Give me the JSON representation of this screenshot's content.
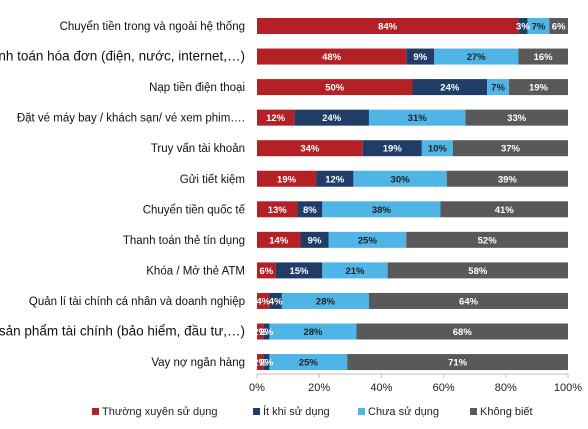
{
  "chart_data": {
    "type": "bar",
    "orientation": "horizontal",
    "stacked": true,
    "categories": [
      "Chuyển tiền trong và ngoài hệ thống",
      "Thanh toán hóa đơn (điện, nước, internet,…)",
      "Nạp tiền điện thoại",
      "Đặt vé máy bay / khách sạn/ vé xem phim….",
      "Truy vấn tài khoản",
      "Gửi tiết kiệm",
      "Chuyển tiền quốc tế",
      "Thanh toán thẻ tín dụng",
      "Khóa / Mở thẻ ATM",
      "Quản lí tài chính cá nhân và doanh nghiệp",
      "Các sản phẩm tài chính (bảo hiểm, đầu tư,…)",
      "Vay nợ ngân hàng"
    ],
    "series": [
      {
        "name": "Thường xuyên sử dụng",
        "color": "#b32025",
        "values": [
          84,
          48,
          50,
          12,
          34,
          19,
          13,
          14,
          6,
          4,
          2,
          2
        ]
      },
      {
        "name": "Ít khi sử dụng",
        "color": "#1f3d66",
        "values": [
          3,
          9,
          24,
          24,
          19,
          12,
          8,
          9,
          15,
          4,
          2,
          2
        ]
      },
      {
        "name": "Chưa sử dụng",
        "color": "#4fb4e6",
        "values": [
          7,
          27,
          7,
          31,
          10,
          30,
          38,
          25,
          21,
          28,
          28,
          25
        ]
      },
      {
        "name": "Không biết",
        "color": "#595959",
        "values": [
          6,
          16,
          19,
          33,
          37,
          39,
          41,
          52,
          58,
          64,
          68,
          71
        ]
      }
    ],
    "data_labels": [
      [
        "84%",
        "48%",
        "50%",
        "12%",
        "34%",
        "19%",
        "13%",
        "14%",
        "6%",
        "4%",
        "2%",
        "2%"
      ],
      [
        "3%",
        "9%",
        "24%",
        "24%",
        "19%",
        "12%",
        "8%",
        "9%",
        "15%",
        "4%",
        "2%",
        "2%"
      ],
      [
        "7%",
        "27%",
        "7%",
        "31%",
        "10%",
        "30%",
        "38%",
        "25%",
        "21%",
        "28%",
        "28%",
        "25%"
      ],
      [
        "6%",
        "16%",
        "19%",
        "33%",
        "37%",
        "39%",
        "41%",
        "52%",
        "58%",
        "64%",
        "68%",
        "71%"
      ]
    ],
    "xlim": [
      0,
      100
    ],
    "xticks": [
      "0%",
      "20%",
      "40%",
      "60%",
      "80%",
      "100%"
    ],
    "title": "",
    "xlabel": "",
    "ylabel": "",
    "grid": false,
    "legend_position": "bottom"
  }
}
